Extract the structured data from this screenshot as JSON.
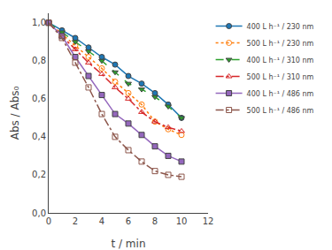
{
  "chart_data": {
    "type": "line",
    "xlabel": "t / min",
    "ylabel": "Abs / Abs₀",
    "x": [
      0,
      1,
      2,
      3,
      4,
      5,
      6,
      7,
      8,
      9,
      10
    ],
    "series": [
      {
        "name": "400 L h⁻¹ / 230 nm",
        "values": [
          1.0,
          0.96,
          0.92,
          0.87,
          0.82,
          0.78,
          0.72,
          0.68,
          0.63,
          0.57,
          0.5
        ],
        "marker": "circle",
        "line_style": "solid"
      },
      {
        "name": "500 L h⁻¹ / 230 nm",
        "values": [
          1.0,
          0.94,
          0.88,
          0.82,
          0.76,
          0.69,
          0.63,
          0.57,
          0.48,
          0.44,
          0.41
        ],
        "marker": "circle-open",
        "line_style": "dotted"
      },
      {
        "name": "400 L h⁻¹ / 310 nm",
        "values": [
          1.0,
          0.95,
          0.9,
          0.85,
          0.8,
          0.74,
          0.68,
          0.65,
          0.61,
          0.56,
          0.5
        ],
        "marker": "triangle-down",
        "line_style": "dashed"
      },
      {
        "name": "500 L h⁻¹ / 310 nm",
        "values": [
          1.0,
          0.93,
          0.86,
          0.79,
          0.73,
          0.66,
          0.6,
          0.53,
          0.48,
          0.45,
          0.43
        ],
        "marker": "triangle-up-open",
        "line_style": "dashdot"
      },
      {
        "name": "400 L h⁻¹ / 486 nm",
        "values": [
          1.0,
          0.93,
          0.82,
          0.72,
          0.62,
          0.52,
          0.47,
          0.41,
          0.35,
          0.3,
          0.27
        ],
        "marker": "square",
        "line_style": "solid"
      },
      {
        "name": "500 L h⁻¹ / 486 nm",
        "values": [
          1.0,
          0.92,
          0.79,
          0.66,
          0.52,
          0.4,
          0.33,
          0.27,
          0.22,
          0.2,
          0.19
        ],
        "marker": "square-open",
        "line_style": "dashdot"
      }
    ],
    "xlim": [
      0,
      12
    ],
    "ylim": [
      0.0,
      1.05
    ],
    "xticks": [
      0,
      2,
      4,
      6,
      8,
      10,
      12
    ],
    "yticks": [
      {
        "value": 0.0,
        "label": "0,0"
      },
      {
        "value": 0.2,
        "label": "0,2"
      },
      {
        "value": 0.4,
        "label": "0,4"
      },
      {
        "value": 0.6,
        "label": "0,6"
      },
      {
        "value": 0.8,
        "label": "0,8"
      },
      {
        "value": 1.0,
        "label": "1,0"
      }
    ],
    "grid": false,
    "legend": "upper right"
  }
}
